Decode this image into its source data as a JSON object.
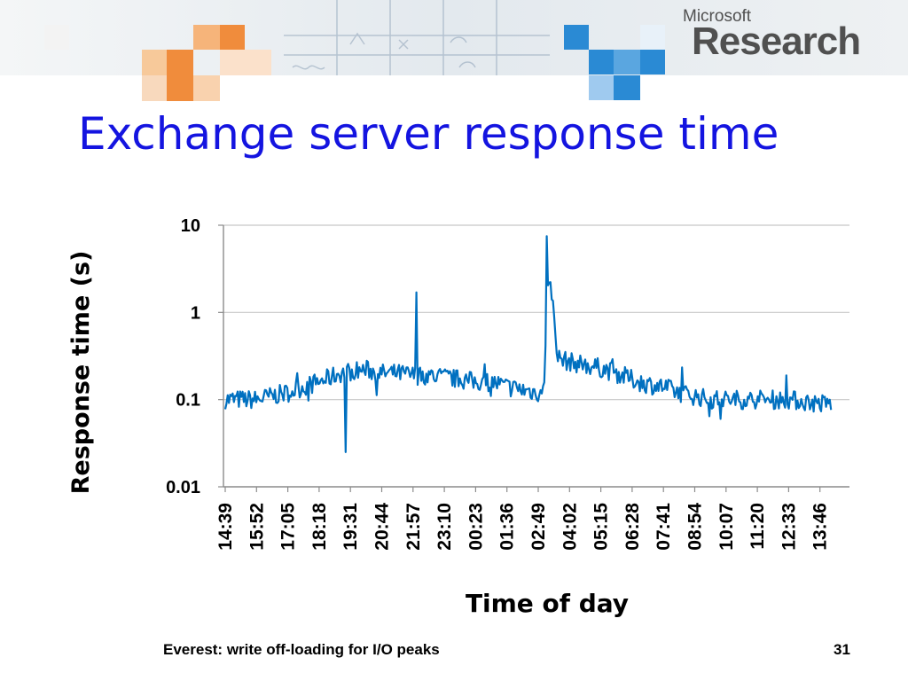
{
  "slide": {
    "title": "Exchange server response time",
    "footer": "Everest: write off-loading for I/O peaks",
    "page_number": "31"
  },
  "logo": {
    "top": "Microsoft",
    "bottom": "Research"
  },
  "colors": {
    "title": "#1414e0",
    "series": "#0070c0",
    "grid": "#c8c8c8",
    "accent_orange": "#f08c3c",
    "accent_blue": "#2a8ad4"
  },
  "chart_data": {
    "type": "line",
    "xlabel": "Time of day",
    "ylabel": "Response time (s)",
    "y_scale": "log",
    "ylim": [
      0.01,
      10
    ],
    "y_ticks": [
      {
        "value": 10,
        "label": "10"
      },
      {
        "value": 1,
        "label": "1"
      },
      {
        "value": 0.1,
        "label": "0.1"
      },
      {
        "value": 0.01,
        "label": "0.01"
      }
    ],
    "x_ticks": [
      "14:39",
      "15:52",
      "17:05",
      "18:18",
      "19:31",
      "20:44",
      "21:57",
      "23:10",
      "00:23",
      "01:36",
      "02:49",
      "04:02",
      "05:15",
      "06:28",
      "07:41",
      "08:54",
      "10:07",
      "11:20",
      "12:33",
      "13:46"
    ],
    "grid": true,
    "series": [
      {
        "color": "#0070c0",
        "x": [
          "14:39",
          "15:16",
          "15:52",
          "16:29",
          "17:05",
          "17:42",
          "18:18",
          "18:45",
          "19:05",
          "19:31",
          "20:08",
          "20:44",
          "21:20",
          "21:57",
          "22:34",
          "23:10",
          "23:47",
          "00:23",
          "01:00",
          "01:36",
          "02:12",
          "02:49",
          "03:02",
          "03:10",
          "03:20",
          "03:35",
          "04:02",
          "04:39",
          "05:15",
          "05:52",
          "06:28",
          "07:04",
          "07:41",
          "08:17",
          "08:54",
          "09:30",
          "10:07",
          "10:44",
          "11:20",
          "11:56",
          "12:33",
          "13:09",
          "13:46",
          "14:14"
        ],
        "y": [
          0.1,
          0.1,
          0.1,
          0.11,
          0.12,
          0.14,
          0.16,
          0.18,
          0.2,
          0.21,
          0.22,
          0.2,
          0.2,
          0.19,
          0.19,
          0.18,
          0.17,
          0.16,
          0.16,
          0.14,
          0.13,
          0.12,
          0.12,
          2.0,
          1.8,
          0.3,
          0.27,
          0.25,
          0.23,
          0.2,
          0.17,
          0.15,
          0.14,
          0.12,
          0.11,
          0.1,
          0.1,
          0.1,
          0.1,
          0.1,
          0.1,
          0.095,
          0.09,
          0.09
        ]
      }
    ],
    "spikes": [
      {
        "x": "19:21",
        "y": 0.025
      },
      {
        "x": "22:06",
        "y": 1.7
      },
      {
        "x": "03:08",
        "y": 7.5
      }
    ]
  }
}
